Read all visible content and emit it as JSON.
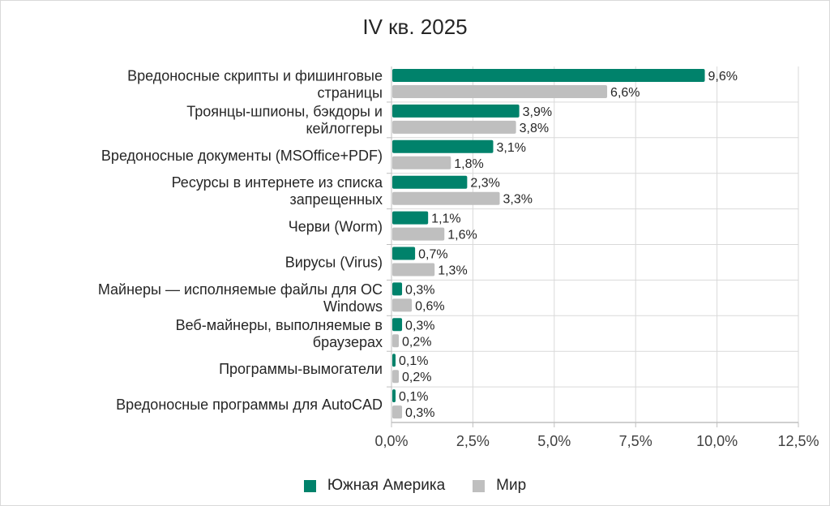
{
  "chart_data": {
    "type": "bar",
    "orientation": "horizontal",
    "title": "IV кв. 2025",
    "xlabel": "",
    "ylabel": "",
    "xlim": [
      0,
      12.5
    ],
    "x_ticks": [
      "0,0%",
      "2,5%",
      "5,0%",
      "7,5%",
      "10,0%",
      "12,5%"
    ],
    "x_tick_values": [
      0,
      2.5,
      5,
      7.5,
      10,
      12.5
    ],
    "grid": true,
    "legend_position": "bottom",
    "categories": [
      "Вредоносные скрипты и фишинговые\nстраницы",
      "Троянцы-шпионы, бэкдоры и\nкейлоггеры",
      "Вредоносные документы (MSOffice+PDF)",
      "Ресурсы в интернете из списка\nзапрещенных",
      "Черви (Worm)",
      "Вирусы (Virus)",
      "Майнеры — исполняемые файлы для ОС\nWindows",
      "Веб-майнеры, выполняемые в\nбраузерах",
      "Программы-вымогатели",
      "Вредоносные программы для AutoCAD"
    ],
    "series": [
      {
        "name": "Южная Америка",
        "color": "#00826b",
        "values": [
          9.6,
          3.9,
          3.1,
          2.3,
          1.1,
          0.7,
          0.3,
          0.3,
          0.1,
          0.1
        ],
        "labels": [
          "9,6%",
          "3,9%",
          "3,1%",
          "2,3%",
          "1,1%",
          "0,7%",
          "0,3%",
          "0,3%",
          "0,1%",
          "0,1%"
        ]
      },
      {
        "name": "Мир",
        "color": "#bfbfbf",
        "values": [
          6.6,
          3.8,
          1.8,
          3.3,
          1.6,
          1.3,
          0.6,
          0.2,
          0.2,
          0.3
        ],
        "labels": [
          "6,6%",
          "3,8%",
          "1,8%",
          "3,3%",
          "1,6%",
          "1,3%",
          "0,6%",
          "0,2%",
          "0,2%",
          "0,3%"
        ]
      }
    ]
  }
}
